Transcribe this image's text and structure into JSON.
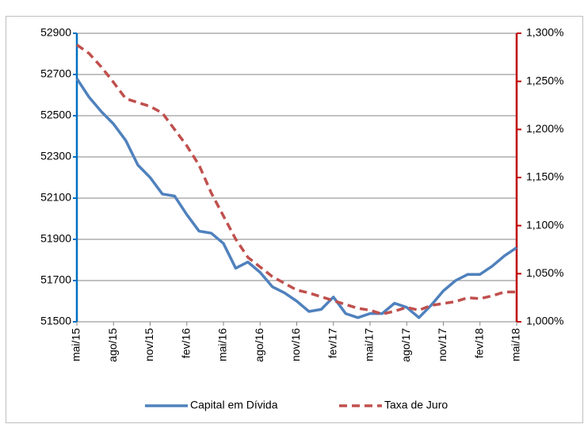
{
  "chart_data": {
    "type": "line",
    "categories": [
      "mai/15",
      null,
      null,
      "ago/15",
      null,
      null,
      "nov/15",
      null,
      null,
      "fev/16",
      null,
      null,
      "mai/16",
      null,
      null,
      "ago/16",
      null,
      null,
      "nov/16",
      null,
      null,
      "fev/17",
      null,
      null,
      "mai/17",
      null,
      null,
      "ago/17",
      null,
      null,
      "nov/17",
      null,
      null,
      "fev/18",
      null,
      null,
      "mai/18"
    ],
    "series": [
      {
        "name": "Capital em Dívida",
        "color": "#4f81bd",
        "line_style": "solid",
        "values": [
          52680,
          52590,
          52520,
          52460,
          52380,
          52260,
          52200,
          52120,
          52110,
          52020,
          51940,
          51930,
          51880,
          51760,
          51790,
          51740,
          51670,
          51640,
          51600,
          51550,
          51560,
          51620,
          51540,
          51520,
          51540,
          51540,
          51590,
          51570,
          51520,
          51580,
          51650,
          51700,
          51730,
          51730,
          51770,
          51820,
          51860
        ]
      },
      {
        "name": "Taxa de Juro",
        "color": "#c0504d",
        "line_style": "dashed",
        "axis": "y2",
        "values": [
          1.288,
          1.279,
          1.265,
          1.249,
          1.232,
          1.228,
          1.224,
          1.217,
          1.2,
          1.183,
          1.163,
          1.134,
          1.11,
          1.086,
          1.067,
          1.057,
          1.047,
          1.04,
          1.033,
          1.03,
          1.026,
          1.022,
          1.018,
          1.014,
          1.012,
          1.008,
          1.011,
          1.015,
          1.012,
          1.017,
          1.019,
          1.021,
          1.025,
          1.024,
          1.027,
          1.031,
          1.031
        ]
      }
    ],
    "ylim": [
      51500,
      52900
    ],
    "yticks": [
      51500,
      51700,
      51900,
      52100,
      52300,
      52500,
      52700,
      52900
    ],
    "y2lim": [
      1.0,
      1.3
    ],
    "y2ticks": [
      {
        "value": 1.0,
        "label": "1,000%"
      },
      {
        "value": 1.05,
        "label": "1,050%"
      },
      {
        "value": 1.1,
        "label": "1,100%"
      },
      {
        "value": 1.15,
        "label": "1,150%"
      },
      {
        "value": 1.2,
        "label": "1,200%"
      },
      {
        "value": 1.25,
        "label": "1,250%"
      },
      {
        "value": 1.3,
        "label": "1,300%"
      }
    ],
    "y_axis_color": "#0070c0",
    "y2_axis_color": "#c00000",
    "grid": true,
    "legend": "bottom"
  }
}
